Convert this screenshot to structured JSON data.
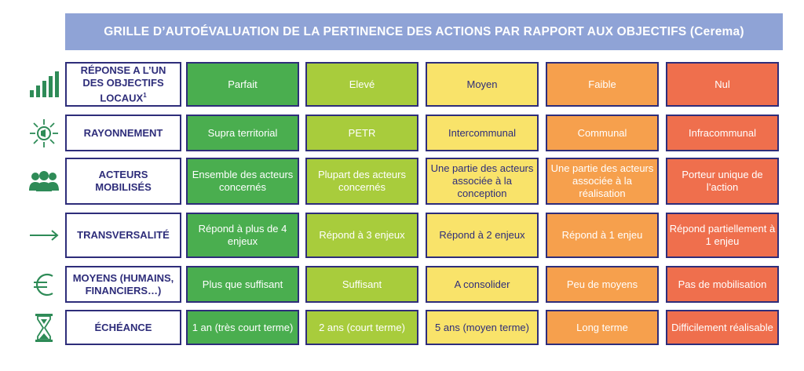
{
  "title": "GRILLE D’AUTOÉVALUATION DE LA PERTINENCE DES ACTIONS PAR RAPPORT AUX OBJECTIFS (Cerema)",
  "colors": {
    "header_bg": "#8fa3d6",
    "border": "#2e2d7a",
    "icon": "#2e8b57",
    "level_colors": [
      "#4aae4f",
      "#a8cc3c",
      "#f9e36a",
      "#f6a04d",
      "#ef6f4d"
    ]
  },
  "rows": [
    {
      "icon": "bar-chart-icon",
      "label": "RÉPONSE A L’UN DES OBJECTIFS LOCAUX",
      "label_sup": "1",
      "cells": [
        "Parfait",
        "Elevé",
        "Moyen",
        "Faible",
        "Nul"
      ]
    },
    {
      "icon": "broadcast-icon",
      "label": "RAYONNEMENT",
      "cells": [
        "Supra territorial",
        "PETR",
        "Intercommunal",
        "Communal",
        "Infracommunal"
      ]
    },
    {
      "icon": "people-icon",
      "label": "ACTEURS MOBILISÉS",
      "cells": [
        "Ensemble des acteurs concernés",
        "Plupart des acteurs concernés",
        "Une partie des acteurs associée à la conception",
        "Une partie des acteurs associée à la réalisation",
        "Porteur unique de l’action"
      ]
    },
    {
      "icon": "arrow-right-icon",
      "label": "TRANSVERSALITÉ",
      "cells": [
        "Répond à plus de 4 enjeux",
        "Répond à  3 enjeux",
        "Répond à  2 enjeux",
        "Répond à 1 enjeu",
        "Répond partiellement à 1 enjeu"
      ]
    },
    {
      "icon": "euro-icon",
      "label": "MOYENS (HUMAINS, FINANCIERS…)",
      "cells": [
        "Plus que suffisant",
        "Suffisant",
        "A consolider",
        "Peu de moyens",
        "Pas de mobilisation"
      ]
    },
    {
      "icon": "hourglass-icon",
      "label": "ÉCHÉANCE",
      "cells": [
        "1 an (très court terme)",
        "2 ans (court terme)",
        "5 ans (moyen terme)",
        "Long terme",
        "Difficilement réalisable"
      ]
    }
  ]
}
